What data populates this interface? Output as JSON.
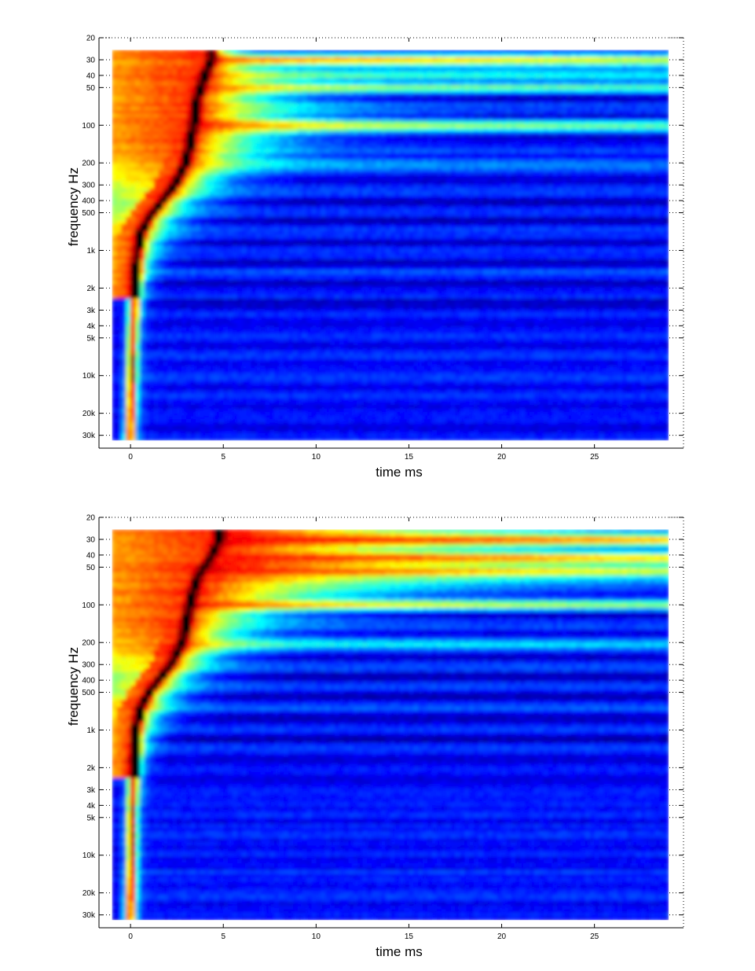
{
  "chart_data": [
    {
      "type": "heatmap",
      "title": "",
      "xlabel": "time   ms",
      "ylabel": "frequency   Hz",
      "x_scale": "linear",
      "y_scale": "log",
      "y_reversed": true,
      "xlim": [
        -1.7,
        29.8
      ],
      "ylim": [
        20,
        38000
      ],
      "data_extent_x": [
        -1,
        29
      ],
      "data_extent_y": [
        25,
        33000
      ],
      "x_ticks": [
        0,
        5,
        10,
        15,
        20,
        25
      ],
      "x_tick_labels": [
        "0",
        "5",
        "10",
        "15",
        "20",
        "25"
      ],
      "y_ticks": [
        20,
        30,
        40,
        50,
        100,
        200,
        300,
        400,
        500,
        1000,
        2000,
        3000,
        4000,
        5000,
        10000,
        20000,
        30000
      ],
      "y_tick_labels": [
        "20",
        "30",
        "40",
        "50",
        "100",
        "200",
        "300",
        "400",
        "500",
        "1k",
        "2k",
        "3k",
        "4k",
        "5k",
        "10k",
        "20k",
        "30k"
      ],
      "colormap": "jet",
      "ridge": {
        "freq_hz": [
          30,
          40,
          60,
          100,
          200,
          300,
          500,
          700,
          1000,
          2000,
          5000,
          10000,
          20000,
          32000
        ],
        "time_ms": [
          4.4,
          4.0,
          3.6,
          3.4,
          3.0,
          2.4,
          1.2,
          0.6,
          0.4,
          0.25,
          0.15,
          0.1,
          0.05,
          0.0
        ]
      },
      "decay_front": {
        "freq_hz": [
          30,
          50,
          100,
          150,
          200,
          300,
          400,
          600,
          1000,
          2000,
          5000,
          10000,
          30000
        ],
        "time_ms": [
          6.0,
          10.0,
          12.0,
          9.0,
          7.7,
          5.5,
          4.5,
          3.0,
          1.8,
          0.9,
          0.5,
          0.3,
          0.2
        ]
      },
      "resonances": [
        {
          "freq_hz": 30,
          "strength": 0.95
        },
        {
          "freq_hz": 40,
          "strength": 0.55
        },
        {
          "freq_hz": 50,
          "strength": 0.5
        },
        {
          "freq_hz": 100,
          "strength": 0.6
        },
        {
          "freq_hz": 200,
          "strength": 0.3
        }
      ],
      "grid": true
    },
    {
      "type": "heatmap",
      "title": "",
      "xlabel": "time   ms",
      "ylabel": "frequency   Hz",
      "x_scale": "linear",
      "y_scale": "log",
      "y_reversed": true,
      "xlim": [
        -1.7,
        29.8
      ],
      "ylim": [
        20,
        38000
      ],
      "data_extent_x": [
        -1,
        29
      ],
      "data_extent_y": [
        25,
        33000
      ],
      "x_ticks": [
        0,
        5,
        10,
        15,
        20,
        25
      ],
      "x_tick_labels": [
        "0",
        "5",
        "10",
        "15",
        "20",
        "25"
      ],
      "y_ticks": [
        20,
        30,
        40,
        50,
        100,
        200,
        300,
        400,
        500,
        1000,
        2000,
        3000,
        4000,
        5000,
        10000,
        20000,
        30000
      ],
      "y_tick_labels": [
        "20",
        "30",
        "40",
        "50",
        "100",
        "200",
        "300",
        "400",
        "500",
        "1k",
        "2k",
        "3k",
        "4k",
        "5k",
        "10k",
        "20k",
        "30k"
      ],
      "colormap": "jet",
      "ridge": {
        "freq_hz": [
          30,
          40,
          60,
          100,
          200,
          300,
          500,
          700,
          1000,
          2000,
          5000,
          10000,
          20000,
          32000
        ],
        "time_ms": [
          4.8,
          4.4,
          3.6,
          3.2,
          2.8,
          2.2,
          1.0,
          0.5,
          0.3,
          0.2,
          0.1,
          0.1,
          0.05,
          0.0
        ]
      },
      "decay_front": {
        "freq_hz": [
          30,
          50,
          100,
          150,
          200,
          300,
          400,
          600,
          1000,
          2000,
          5000,
          10000,
          30000
        ],
        "time_ms": [
          29,
          29,
          12.0,
          8.0,
          7.0,
          5.0,
          4.0,
          2.8,
          1.6,
          0.8,
          0.45,
          0.3,
          0.2
        ]
      },
      "resonances": [
        {
          "freq_hz": 30,
          "strength": 1.0
        },
        {
          "freq_hz": 42,
          "strength": 1.0
        },
        {
          "freq_hz": 55,
          "strength": 0.9
        },
        {
          "freq_hz": 100,
          "strength": 0.6
        },
        {
          "freq_hz": 200,
          "strength": 0.3
        }
      ],
      "grid": true
    }
  ]
}
